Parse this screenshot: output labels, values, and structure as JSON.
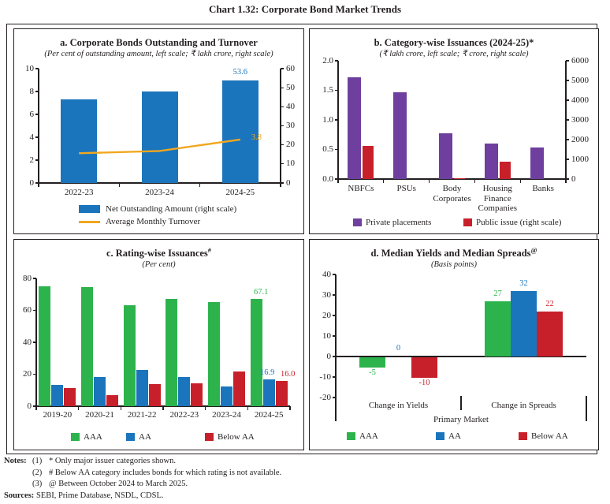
{
  "page_title": "Chart 1.32: Corporate Bond Market Trends",
  "chart_data": [
    {
      "id": "a",
      "type": "bar+line",
      "title": "a. Corporate Bonds Outstanding and Turnover",
      "title_sup": "",
      "subtitle": "(Per cent of outstanding amount, left scale; ₹ lakh crore, right scale)",
      "categories": [
        "2022-23",
        "2023-24",
        "2024-25"
      ],
      "left_axis": {
        "min": 0,
        "max": 10,
        "ticks": [
          0,
          2,
          4,
          6,
          8,
          10
        ]
      },
      "right_axis": {
        "min": 0,
        "max": 60,
        "ticks": [
          0,
          10,
          20,
          30,
          40,
          50,
          60
        ]
      },
      "series": [
        {
          "name": "Net Outstanding Amount (right scale)",
          "type": "bar",
          "scale": "right",
          "color": "#1b75bc",
          "values": [
            44,
            48,
            53.6
          ],
          "value_labels": [
            null,
            null,
            "53.6"
          ]
        }
      ],
      "line": {
        "name": "Average Monthly Turnover",
        "scale": "left",
        "color": "#f2a71e",
        "values": [
          2.6,
          2.8,
          3.8
        ],
        "end_label": "3.8"
      },
      "legend": [
        {
          "label": "Net Outstanding Amount (right scale)",
          "color": "#1b75bc",
          "shape": "rect"
        },
        {
          "label": "Average Monthly Turnover",
          "color": "#f2a71e",
          "shape": "line"
        }
      ]
    },
    {
      "id": "b",
      "type": "bar",
      "title": "b. Category-wise Issuances (2024-25)*",
      "title_sup": "",
      "subtitle": "(₹ lakh crore, left scale; ₹ crore, right scale)",
      "categories": [
        "NBFCs",
        "PSUs",
        "Body\nCorporates",
        "Housing\nFinance\nCompanies",
        "Banks"
      ],
      "left_axis": {
        "min": 0,
        "max": 2,
        "ticks": [
          "0.0",
          "0.5",
          "1.0",
          "1.5",
          "2.0"
        ]
      },
      "right_axis": {
        "min": 0,
        "max": 6000,
        "ticks": [
          0,
          1000,
          2000,
          3000,
          4000,
          5000,
          6000
        ]
      },
      "series": [
        {
          "name": "Private placements",
          "scale": "left",
          "color": "#6e3f9e",
          "values": [
            1.72,
            1.47,
            0.77,
            0.6,
            0.53
          ]
        },
        {
          "name": "Public issue (right scale)",
          "scale": "right",
          "color": "#c8202a",
          "values": [
            1680,
            0,
            50,
            900,
            0
          ]
        }
      ],
      "legend": [
        {
          "label": "Private placements",
          "color": "#6e3f9e",
          "shape": "sq"
        },
        {
          "label": "Public issue (right scale)",
          "color": "#c8202a",
          "shape": "sq"
        }
      ]
    },
    {
      "id": "c",
      "type": "bar",
      "title": "c. Rating-wise Issuances",
      "title_sup": "#",
      "subtitle": "(Per cent)",
      "categories": [
        "2019-20",
        "2020-21",
        "2021-22",
        "2022-23",
        "2023-24",
        "2024-25"
      ],
      "left_axis": {
        "min": 0,
        "max": 80,
        "ticks": [
          0,
          20,
          40,
          60,
          80
        ]
      },
      "series": [
        {
          "name": "AAA",
          "color": "#2cb34c",
          "values": [
            75,
            74.5,
            63,
            67.2,
            65.3,
            67.1
          ],
          "value_labels": [
            null,
            null,
            null,
            null,
            null,
            "67.1"
          ]
        },
        {
          "name": "AA",
          "color": "#1b75bc",
          "values": [
            13.3,
            18.2,
            22.8,
            18.1,
            12.4,
            16.9
          ],
          "value_labels": [
            null,
            null,
            null,
            null,
            null,
            "16.9"
          ]
        },
        {
          "name": "Below AA",
          "color": "#c8202a",
          "values": [
            11.4,
            7,
            13.6,
            14.2,
            21.8,
            16
          ],
          "value_labels": [
            null,
            null,
            null,
            null,
            null,
            "16.0"
          ]
        }
      ],
      "legend": [
        {
          "label": "AAA",
          "color": "#2cb34c",
          "shape": "sq"
        },
        {
          "label": "AA",
          "color": "#1b75bc",
          "shape": "sq"
        },
        {
          "label": "Below AA",
          "color": "#c8202a",
          "shape": "sq"
        }
      ]
    },
    {
      "id": "d",
      "type": "bar",
      "title": "d. Median Yields and Median Spreads",
      "title_sup": "@",
      "subtitle": "(Basis points)",
      "categories": [
        "Change in Yields",
        "Change in Spreads"
      ],
      "xlabel": "Primary Market",
      "left_axis": {
        "min": -20,
        "max": 40,
        "ticks": [
          -20,
          -10,
          0,
          10,
          20,
          30,
          40
        ]
      },
      "series": [
        {
          "name": "AAA",
          "color": "#2cb34c",
          "values": [
            -5,
            27
          ],
          "value_labels": [
            "-5",
            "27"
          ]
        },
        {
          "name": "AA",
          "color": "#1b75bc",
          "values": [
            0,
            32
          ],
          "value_labels": [
            "0",
            "32"
          ]
        },
        {
          "name": "Below AA",
          "color": "#c8202a",
          "values": [
            -10,
            22
          ],
          "value_labels": [
            "-10",
            "22"
          ]
        }
      ],
      "legend": [
        {
          "label": "AAA",
          "color": "#2cb34c",
          "shape": "sq"
        },
        {
          "label": "AA",
          "color": "#1b75bc",
          "shape": "sq"
        },
        {
          "label": "Below AA",
          "color": "#c8202a",
          "shape": "sq"
        }
      ]
    }
  ],
  "notes": {
    "label": "Notes:",
    "items": [
      {
        "num": "(1)",
        "text": "* Only major issuer categories shown."
      },
      {
        "num": "(2)",
        "text": "# Below AA category includes bonds for which rating is not available."
      },
      {
        "num": "(3)",
        "text": "@ Between October 2024 to March 2025."
      }
    ],
    "sources_label": "Sources:",
    "sources_text": "SEBI, Prime Database, NSDL, CDSL."
  }
}
